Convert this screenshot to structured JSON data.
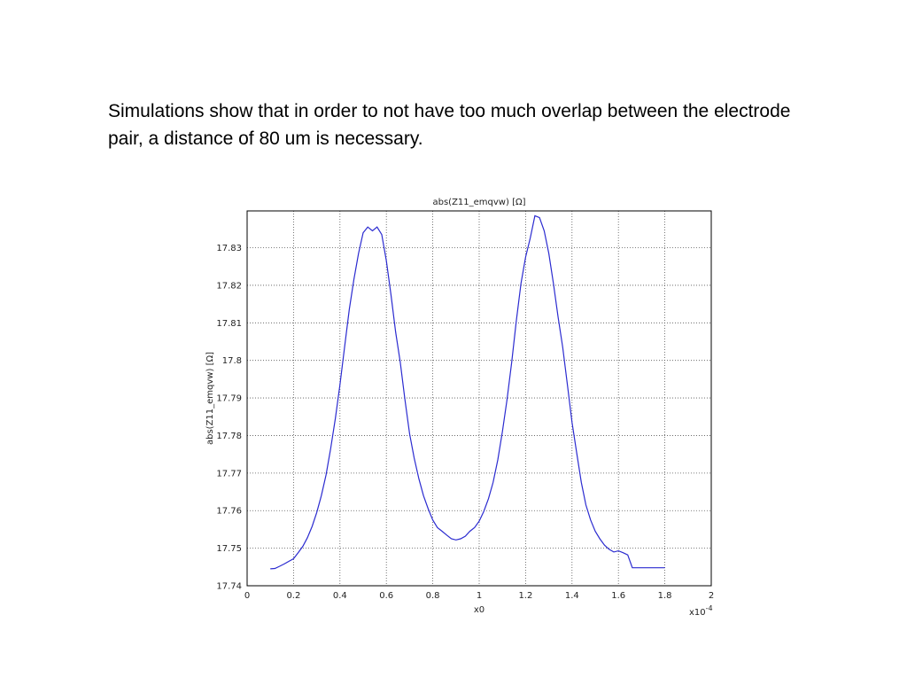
{
  "slide": {
    "text": "Simulations show that in order to not have too much overlap between the electrode pair, a distance of 80 um is necessary."
  },
  "chart_data": {
    "type": "line",
    "title": "abs(Z11_emqvw) [Ω]",
    "xlabel": "x0",
    "ylabel": "abs(Z11_emqvw) [Ω]",
    "x_multiplier_label": "x10",
    "x_multiplier_exponent": "-4",
    "xlim": [
      0,
      2
    ],
    "ylim": [
      17.74,
      17.8398
    ],
    "xticks": [
      0,
      0.2,
      0.4,
      0.6,
      0.8,
      1,
      1.2,
      1.4,
      1.6,
      1.8,
      2
    ],
    "xtick_labels": [
      "0",
      "0.2",
      "0.4",
      "0.6",
      "0.8",
      "1",
      "1.2",
      "1.4",
      "1.6",
      "1.8",
      "2"
    ],
    "yticks": [
      17.74,
      17.75,
      17.76,
      17.77,
      17.78,
      17.79,
      17.8,
      17.81,
      17.82,
      17.83
    ],
    "ytick_labels": [
      "17.74",
      "17.75",
      "17.76",
      "17.77",
      "17.78",
      "17.79",
      "17.8",
      "17.81",
      "17.82",
      "17.83"
    ],
    "grid": true,
    "line_color": "#2b2bd0",
    "series": [
      {
        "x": [
          0.1,
          0.12,
          0.14,
          0.16,
          0.18,
          0.2,
          0.22,
          0.24,
          0.26,
          0.28,
          0.3,
          0.32,
          0.34,
          0.36,
          0.38,
          0.4,
          0.42,
          0.44,
          0.46,
          0.48,
          0.5,
          0.52,
          0.54,
          0.56,
          0.58,
          0.6,
          0.62,
          0.64,
          0.66,
          0.68,
          0.7,
          0.72,
          0.74,
          0.76,
          0.78,
          0.8,
          0.82,
          0.84,
          0.86,
          0.88,
          0.9,
          0.92,
          0.94,
          0.96,
          0.98,
          1.0,
          1.02,
          1.04,
          1.06,
          1.08,
          1.1,
          1.12,
          1.14,
          1.16,
          1.18,
          1.2,
          1.22,
          1.24,
          1.26,
          1.28,
          1.3,
          1.32,
          1.34,
          1.36,
          1.38,
          1.4,
          1.42,
          1.44,
          1.46,
          1.48,
          1.5,
          1.52,
          1.54,
          1.56,
          1.58,
          1.6,
          1.62,
          1.64,
          1.66,
          1.68,
          1.7,
          1.72,
          1.74,
          1.76,
          1.78,
          1.8
        ],
        "y": [
          17.7445,
          17.7446,
          17.7452,
          17.7458,
          17.7465,
          17.7472,
          17.7488,
          17.7505,
          17.7528,
          17.7558,
          17.7595,
          17.764,
          17.7695,
          17.7765,
          17.7845,
          17.7935,
          17.8035,
          17.8135,
          17.8215,
          17.8285,
          17.834,
          17.8355,
          17.8345,
          17.8355,
          17.8335,
          17.8265,
          17.8175,
          17.8075,
          17.7995,
          17.7895,
          17.7805,
          17.774,
          17.7685,
          17.764,
          17.7605,
          17.7575,
          17.7555,
          17.7545,
          17.7535,
          17.7525,
          17.7522,
          17.7525,
          17.7532,
          17.7545,
          17.7555,
          17.7572,
          17.7598,
          17.7632,
          17.7675,
          17.7735,
          17.781,
          17.7895,
          17.7995,
          17.8105,
          17.8205,
          17.8275,
          17.8325,
          17.8385,
          17.838,
          17.8345,
          17.8285,
          17.8205,
          17.8115,
          17.8035,
          17.7935,
          17.7835,
          17.7755,
          17.7675,
          17.7615,
          17.7575,
          17.7545,
          17.7525,
          17.7508,
          17.7497,
          17.749,
          17.7493,
          17.7488,
          17.7482,
          17.7448,
          17.7448,
          17.7448,
          17.7448,
          17.7448,
          17.7448,
          17.7448,
          17.7448
        ]
      }
    ]
  }
}
